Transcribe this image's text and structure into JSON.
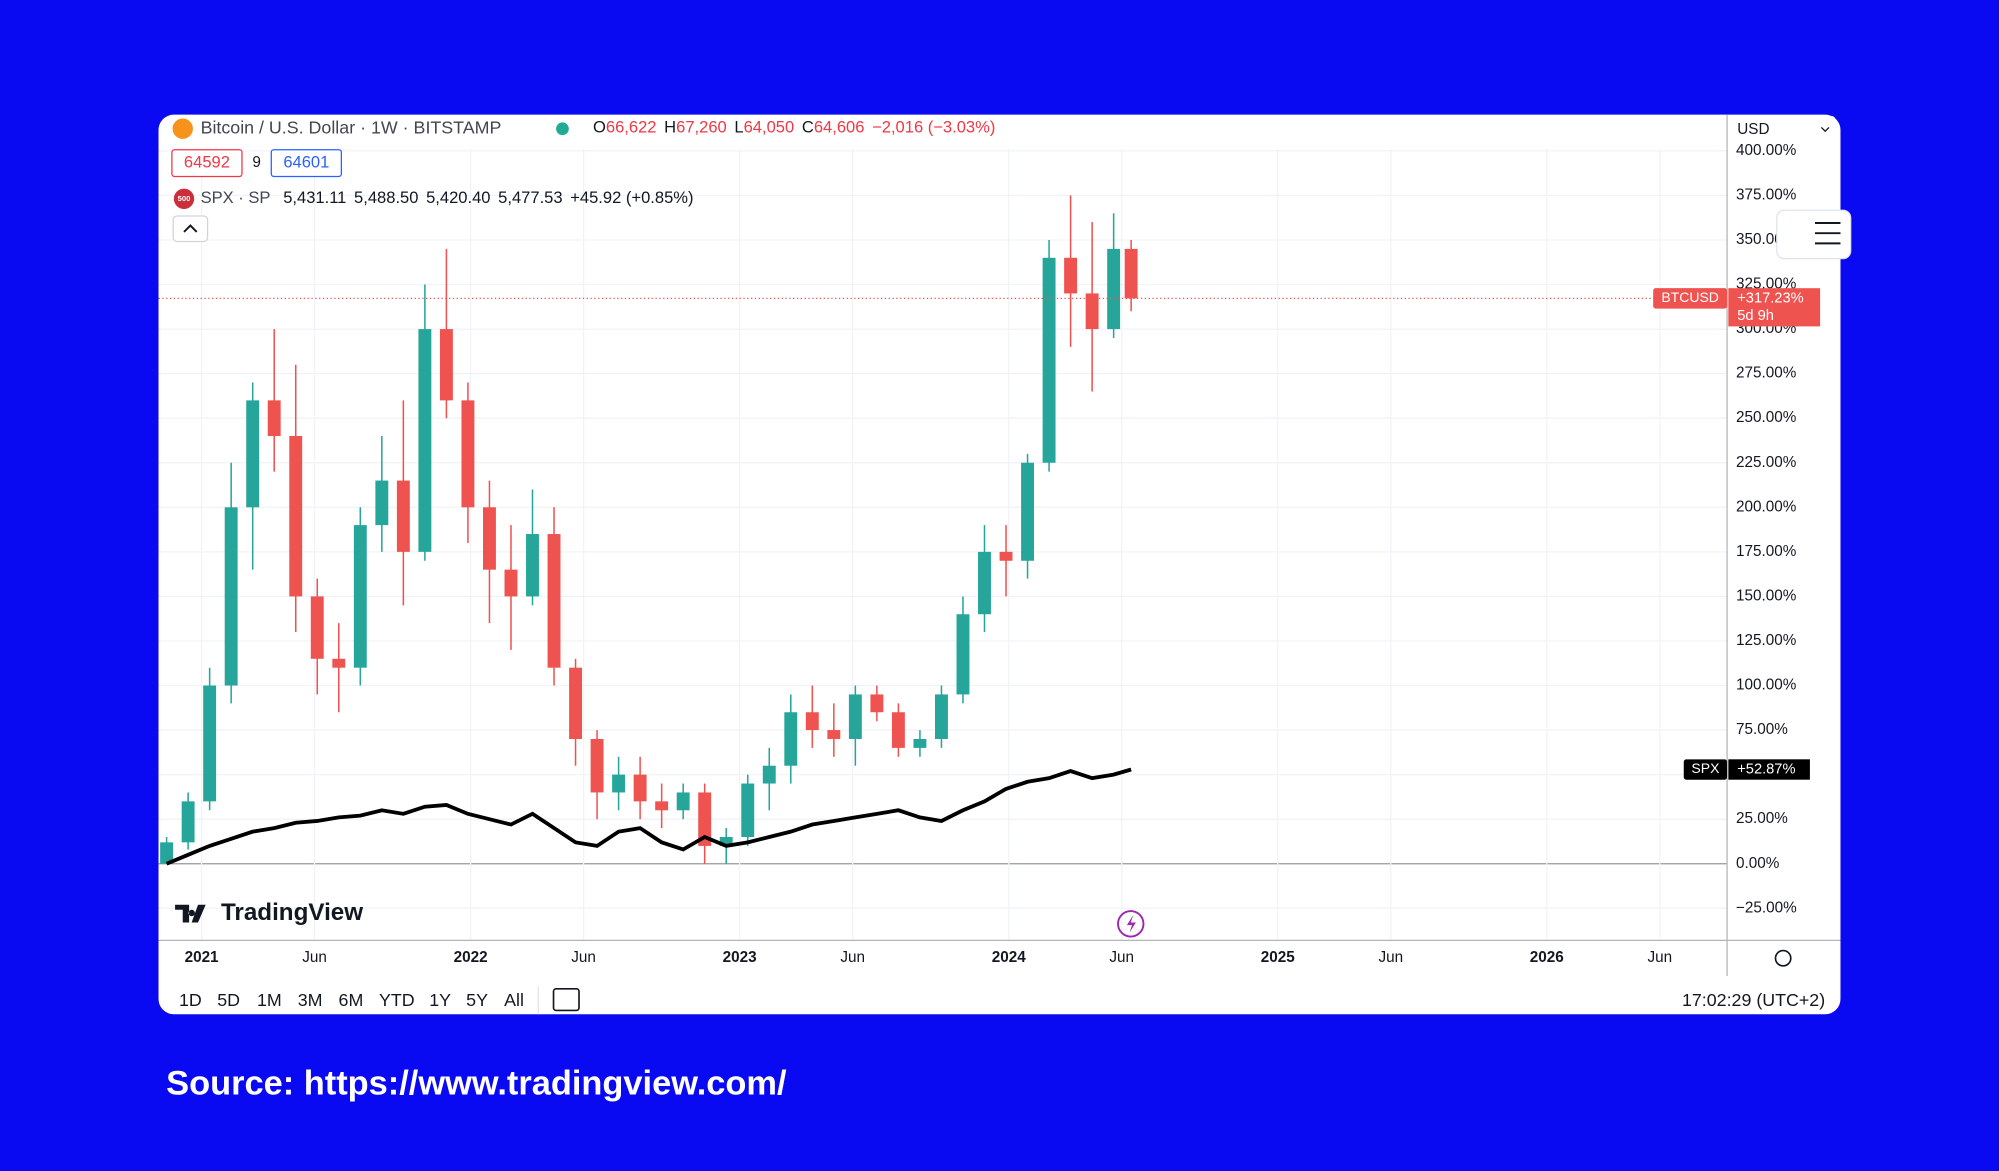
{
  "header": {
    "symbol": "Bitcoin / U.S. Dollar · 1W · BITSTAMP",
    "ohlc": [
      {
        "label": "O",
        "value": "66,622"
      },
      {
        "label": "H",
        "value": "67,260"
      },
      {
        "label": "L",
        "value": "64,050"
      },
      {
        "label": "C",
        "value": "64,606"
      }
    ],
    "change": "−2,016 (−3.03%)",
    "bid": "64592",
    "spread": "9",
    "ask": "64601",
    "compare": {
      "icon": "500",
      "symbol": "SPX · SP",
      "open": "5,431.11",
      "high": "5,488.50",
      "low": "5,420.40",
      "close": "5,477.53",
      "change": "+45.92 (+0.85%)"
    },
    "currency": "USD"
  },
  "brand": "TradingView",
  "toolbar": {
    "ranges": [
      "1D",
      "5D",
      "1M",
      "3M",
      "6M",
      "YTD",
      "1Y",
      "5Y",
      "All"
    ],
    "time": "17:02:29 (UTC+2)"
  },
  "source": "Source: https://www.tradingview.com/",
  "chart_data": {
    "type": "candlestick",
    "x": [
      2020.87,
      2020.95,
      2021.03,
      2021.11,
      2021.19,
      2021.27,
      2021.35,
      2021.43,
      2021.51,
      2021.59,
      2021.67,
      2021.75,
      2021.83,
      2021.91,
      2021.99,
      2022.07,
      2022.15,
      2022.23,
      2022.31,
      2022.39,
      2022.47,
      2022.55,
      2022.63,
      2022.71,
      2022.79,
      2022.87,
      2022.95,
      2023.03,
      2023.11,
      2023.19,
      2023.27,
      2023.35,
      2023.43,
      2023.51,
      2023.59,
      2023.67,
      2023.75,
      2023.83,
      2023.91,
      2023.99,
      2024.07,
      2024.15,
      2024.23,
      2024.31,
      2024.39,
      2024.455
    ],
    "series": [
      {
        "name": "BTCUSD",
        "type": "candlestick",
        "up_color": "#26a69a",
        "down_color": "#ef5350",
        "open": [
          0,
          12,
          35,
          100,
          200,
          260,
          240,
          150,
          115,
          110,
          190,
          215,
          175,
          300,
          260,
          200,
          165,
          150,
          185,
          110,
          70,
          40,
          50,
          35,
          30,
          40,
          10,
          15,
          45,
          55,
          85,
          75,
          70,
          95,
          85,
          65,
          70,
          95,
          140,
          175,
          170,
          225,
          340,
          320,
          300,
          345
        ],
        "high": [
          15,
          40,
          110,
          225,
          270,
          300,
          280,
          160,
          135,
          200,
          240,
          260,
          325,
          345,
          270,
          215,
          190,
          210,
          200,
          115,
          75,
          60,
          60,
          45,
          45,
          45,
          20,
          50,
          65,
          95,
          100,
          90,
          100,
          100,
          90,
          75,
          100,
          150,
          190,
          190,
          230,
          350,
          375,
          360,
          365,
          350
        ],
        "low": [
          0,
          8,
          30,
          90,
          165,
          220,
          130,
          95,
          85,
          100,
          175,
          145,
          170,
          250,
          180,
          135,
          120,
          145,
          100,
          55,
          25,
          30,
          25,
          20,
          25,
          0,
          0,
          10,
          30,
          45,
          65,
          60,
          55,
          80,
          60,
          60,
          65,
          90,
          130,
          150,
          160,
          220,
          290,
          265,
          295,
          310
        ],
        "close": [
          12,
          35,
          100,
          200,
          260,
          240,
          150,
          115,
          110,
          190,
          215,
          175,
          300,
          260,
          200,
          165,
          150,
          185,
          110,
          70,
          40,
          50,
          35,
          30,
          40,
          10,
          15,
          45,
          55,
          85,
          75,
          70,
          95,
          85,
          65,
          70,
          95,
          140,
          175,
          170,
          225,
          340,
          320,
          300,
          345,
          317.23
        ],
        "close_label": "+317.23%",
        "countdown": "5d 9h"
      },
      {
        "name": "SPX",
        "type": "line",
        "color": "#000000",
        "values": [
          0,
          5,
          10,
          14,
          18,
          20,
          23,
          24,
          26,
          27,
          30,
          28,
          32,
          33,
          28,
          25,
          22,
          28,
          20,
          12,
          10,
          18,
          20,
          12,
          8,
          15,
          10,
          12,
          15,
          18,
          22,
          24,
          26,
          28,
          30,
          26,
          24,
          30,
          35,
          42,
          46,
          48,
          52,
          48,
          50,
          52.87
        ],
        "last_label": "+52.87%"
      }
    ],
    "xlim": [
      2020.84,
      2026.67
    ],
    "xticks": [
      2021,
      {
        "value": 2021.42,
        "label": "Jun"
      },
      2022,
      {
        "value": 2022.42,
        "label": "Jun"
      },
      2023,
      {
        "value": 2023.42,
        "label": "Jun"
      },
      2024,
      {
        "value": 2024.42,
        "label": "Jun"
      },
      2025,
      {
        "value": 2025.42,
        "label": "Jun"
      },
      2026,
      {
        "value": 2026.42,
        "label": "Jun"
      }
    ],
    "ylim": [
      -43,
      401
    ],
    "yticks": [
      {
        "value": -25,
        "label": "−25.00%"
      },
      {
        "value": 0,
        "label": "0.00%"
      },
      {
        "value": 25,
        "label": "25.00%"
      },
      {
        "value": 50,
        "label": "50.00%"
      },
      {
        "value": 75,
        "label": "75.00%"
      },
      {
        "value": 100,
        "label": "100.00%"
      },
      {
        "value": 125,
        "label": "125.00%"
      },
      {
        "value": 150,
        "label": "150.00%"
      },
      {
        "value": 175,
        "label": "175.00%"
      },
      {
        "value": 200,
        "label": "200.00%"
      },
      {
        "value": 225,
        "label": "225.00%"
      },
      {
        "value": 250,
        "label": "250.00%"
      },
      {
        "value": 275,
        "label": "275.00%"
      },
      {
        "value": 300,
        "label": "300.00%"
      },
      {
        "value": 325,
        "label": "325.00%"
      },
      {
        "value": 350,
        "label": "350.00%"
      },
      {
        "value": 375,
        "label": "375.00%"
      },
      {
        "value": 400,
        "label": "400.00%"
      }
    ],
    "grid": true
  }
}
